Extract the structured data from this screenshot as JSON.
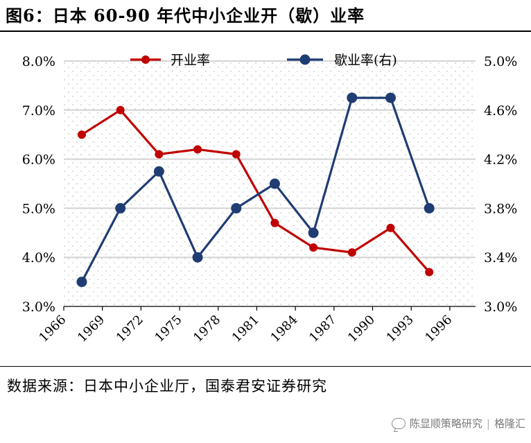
{
  "figure": {
    "title": "图6：日本 60-90 年代中小企业开（歇）业率",
    "source": "数据来源：日本中小企业厅，国泰君安证券研究",
    "watermark": {
      "brand": "陈显顺策略研究",
      "site": "格隆汇"
    }
  },
  "chart_data": {
    "type": "line",
    "title": "",
    "xlabel": "",
    "x_ticks": [
      "1966",
      "1969",
      "1972",
      "1975",
      "1978",
      "1981",
      "1984",
      "1987",
      "1990",
      "1993",
      "1996"
    ],
    "xlim": [
      1966,
      1998
    ],
    "y_left": {
      "ticks": [
        "3.0%",
        "4.0%",
        "5.0%",
        "6.0%",
        "7.0%",
        "8.0%"
      ],
      "ylim": [
        3.0,
        8.0
      ]
    },
    "y_right": {
      "ticks": [
        "3.0%",
        "3.4%",
        "3.8%",
        "4.2%",
        "4.6%",
        "5.0%"
      ],
      "ylim": [
        3.0,
        5.0
      ]
    },
    "grid": "horizontal",
    "background": "dotted",
    "legend_position": "top",
    "series": [
      {
        "name": "开业率",
        "axis": "left",
        "color": "#c00000",
        "x": [
          1967.4,
          1970.4,
          1973.4,
          1976.4,
          1979.4,
          1982.4,
          1985.4,
          1988.4,
          1991.4,
          1994.4
        ],
        "values": [
          6.5,
          7.0,
          6.1,
          6.2,
          6.1,
          4.7,
          4.2,
          4.1,
          4.6,
          3.7
        ]
      },
      {
        "name": "歇业率(右)",
        "axis": "right",
        "color": "#1f3d73",
        "x": [
          1967.4,
          1970.4,
          1973.4,
          1976.4,
          1979.4,
          1982.4,
          1985.4,
          1988.4,
          1991.4,
          1994.4
        ],
        "values": [
          3.2,
          3.8,
          4.1,
          3.4,
          3.8,
          4.0,
          3.6,
          4.7,
          4.7,
          3.8
        ]
      }
    ]
  }
}
